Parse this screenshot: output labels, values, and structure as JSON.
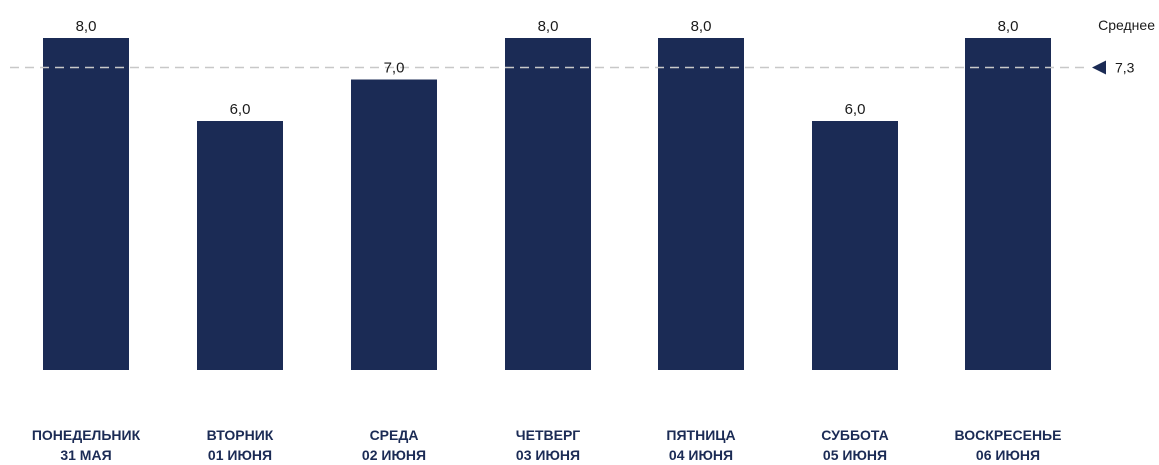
{
  "chart_data": {
    "type": "bar",
    "categories": [
      [
        "ПОНЕДЕЛЬНИК",
        "31 МАЯ"
      ],
      [
        "ВТОРНИК",
        "01 ИЮНЯ"
      ],
      [
        "СРЕДА",
        "02 ИЮНЯ"
      ],
      [
        "ЧЕТВЕРГ",
        "03 ИЮНЯ"
      ],
      [
        "ПЯТНИЦА",
        "04 ИЮНЯ"
      ],
      [
        "СУББОТА",
        "05 ИЮНЯ"
      ],
      [
        "ВОСКРЕСЕНЬЕ",
        "06 ИЮНЯ"
      ]
    ],
    "values": [
      8.0,
      6.0,
      7.0,
      8.0,
      8.0,
      6.0,
      8.0
    ],
    "value_labels": [
      "8,0",
      "6,0",
      "7,0",
      "8,0",
      "8,0",
      "6,0",
      "8,0"
    ],
    "average": {
      "label": "Среднее",
      "value": 7.3,
      "value_label": "7,3"
    },
    "ylim": [
      0,
      8
    ],
    "grid": false,
    "colors": {
      "bar": "#1b2b55",
      "average_line": "#c8c8c8",
      "average_marker": "#1b2b55"
    }
  }
}
